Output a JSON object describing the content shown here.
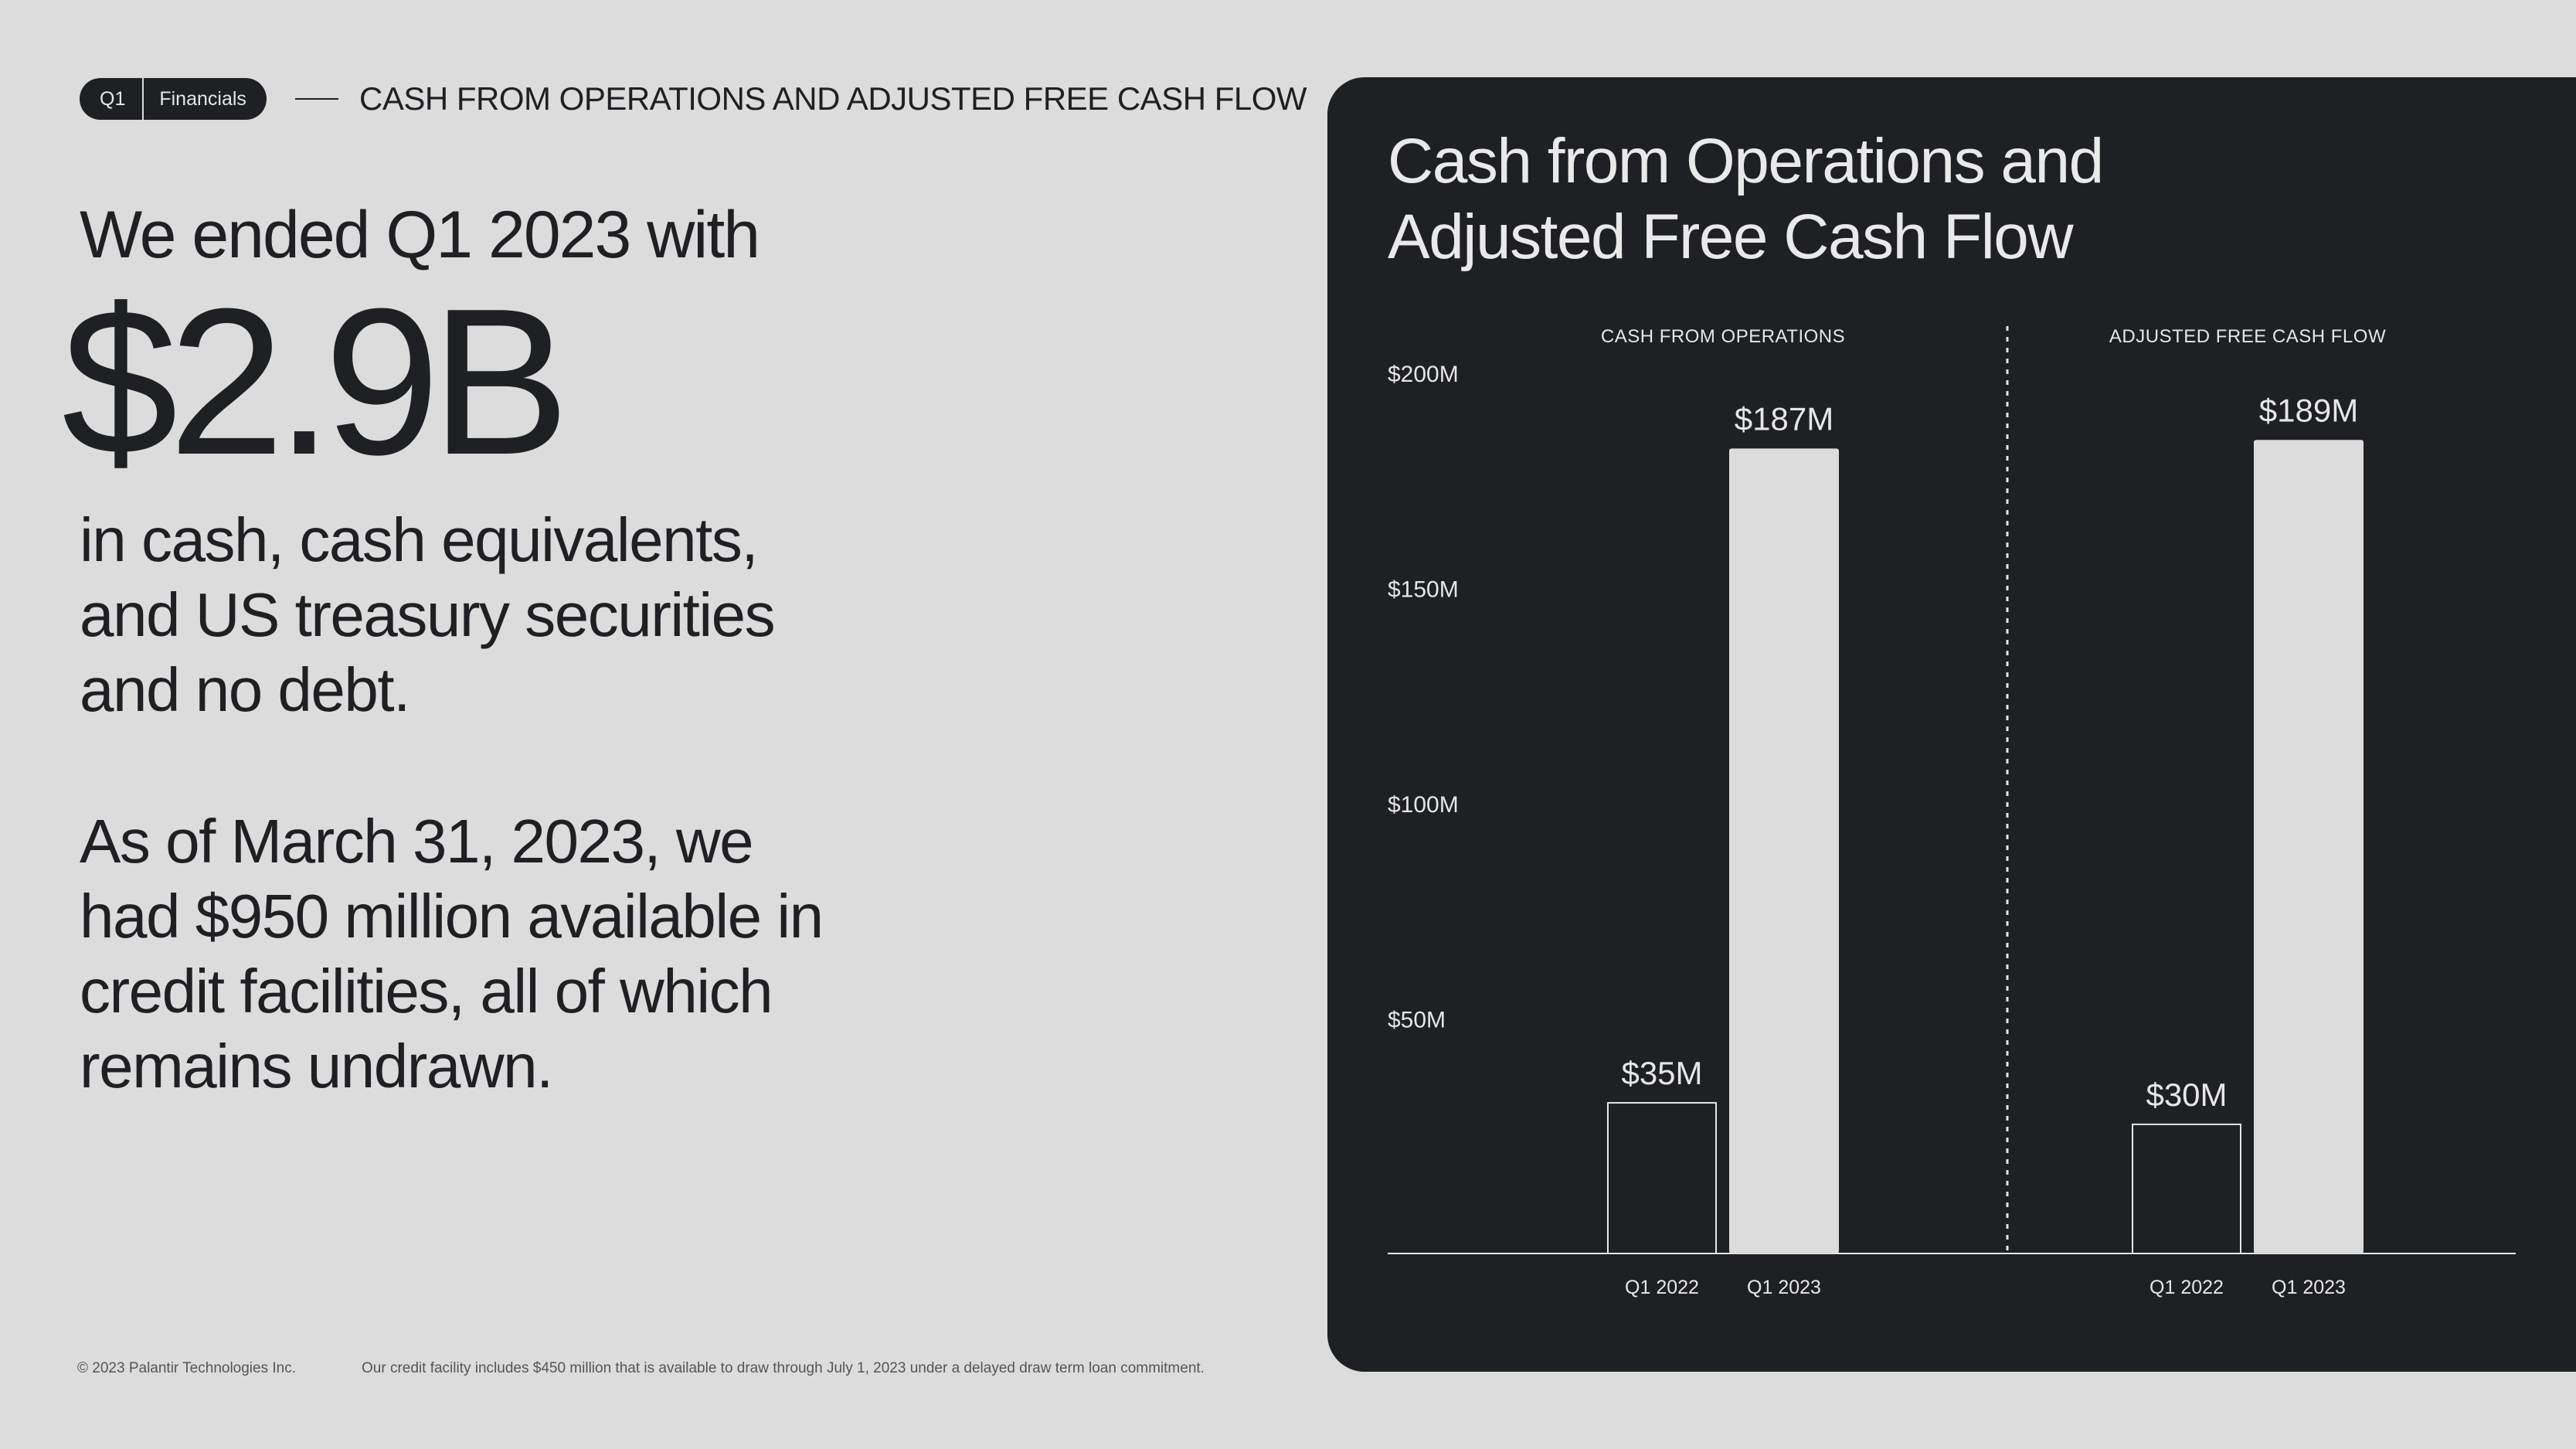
{
  "header": {
    "quarter": "Q1",
    "section": "Financials",
    "title": "CASH FROM OPERATIONS AND ADJUSTED FREE CASH FLOW"
  },
  "left": {
    "intro": "We ended Q1 2023 with",
    "big_value": "$2.9B",
    "para1_lines": [
      "in cash, cash equivalents,",
      "and US treasury securities",
      "and no debt."
    ],
    "para2_lines": [
      "As of March 31, 2023, we",
      "had $950 million available in",
      "credit facilities, all of which",
      "remains undrawn."
    ]
  },
  "footer": {
    "copyright": "© 2023 Palantir Technologies Inc.",
    "note": "Our credit facility includes $450 million that is available to draw through July 1, 2023 under a delayed draw term loan commitment."
  },
  "colors": {
    "background": "#dcdcdc",
    "panel": "#1f2023",
    "bar_fill": "#dcdcdc",
    "bar_outline": "#e6e6e6",
    "text_light": "#e6e6e6"
  },
  "chart_data": {
    "type": "bar",
    "title_lines": [
      "Cash from Operations and",
      "Adjusted Free Cash Flow"
    ],
    "yticks": [
      {
        "value": 50,
        "label": "$50M"
      },
      {
        "value": 100,
        "label": "$100M"
      },
      {
        "value": 150,
        "label": "$150M"
      },
      {
        "value": 200,
        "label": "$200M"
      }
    ],
    "ylim": [
      0,
      200
    ],
    "grid": false,
    "groups": [
      {
        "name": "CASH FROM OPERATIONS",
        "bars": [
          {
            "category": "Q1 2022",
            "value": 35,
            "label": "$35M",
            "style": "outline"
          },
          {
            "category": "Q1 2023",
            "value": 187,
            "label": "$187M",
            "style": "filled"
          }
        ]
      },
      {
        "name": "ADJUSTED FREE CASH FLOW",
        "bars": [
          {
            "category": "Q1 2022",
            "value": 30,
            "label": "$30M",
            "style": "outline"
          },
          {
            "category": "Q1 2023",
            "value": 189,
            "label": "$189M",
            "style": "filled"
          }
        ]
      }
    ]
  }
}
